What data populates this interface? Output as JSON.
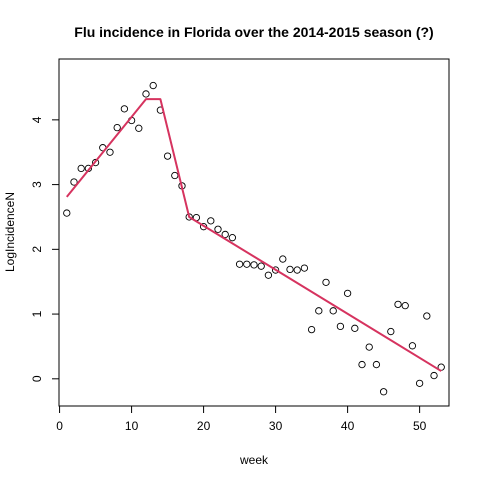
{
  "chart_data": {
    "type": "scatter",
    "title": "Flu incidence in Florida over the 2014-2015 season (?)",
    "xlabel": "week",
    "ylabel": "LogIncidenceN",
    "xlim": [
      -0.08,
      54.08
    ],
    "ylim": [
      -0.42,
      4.94
    ],
    "xticks": [
      0,
      10,
      20,
      30,
      40,
      50
    ],
    "yticks": [
      0,
      1,
      2,
      3,
      4
    ],
    "grid": false,
    "colors": {
      "points": "#000000",
      "fit_line": "#d6335f"
    },
    "points": [
      {
        "x": 1,
        "y": 2.56
      },
      {
        "x": 2,
        "y": 3.04
      },
      {
        "x": 3,
        "y": 3.25
      },
      {
        "x": 4,
        "y": 3.25
      },
      {
        "x": 5,
        "y": 3.34
      },
      {
        "x": 6,
        "y": 3.57
      },
      {
        "x": 7,
        "y": 3.5
      },
      {
        "x": 8,
        "y": 3.88
      },
      {
        "x": 9,
        "y": 4.17
      },
      {
        "x": 10,
        "y": 3.99
      },
      {
        "x": 11,
        "y": 3.87
      },
      {
        "x": 12,
        "y": 4.4
      },
      {
        "x": 13,
        "y": 4.53
      },
      {
        "x": 14,
        "y": 4.15
      },
      {
        "x": 15,
        "y": 3.44
      },
      {
        "x": 16,
        "y": 3.14
      },
      {
        "x": 17,
        "y": 2.98
      },
      {
        "x": 18,
        "y": 2.5
      },
      {
        "x": 19,
        "y": 2.49
      },
      {
        "x": 20,
        "y": 2.35
      },
      {
        "x": 21,
        "y": 2.44
      },
      {
        "x": 22,
        "y": 2.31
      },
      {
        "x": 23,
        "y": 2.23
      },
      {
        "x": 24,
        "y": 2.18
      },
      {
        "x": 25,
        "y": 1.77
      },
      {
        "x": 26,
        "y": 1.77
      },
      {
        "x": 27,
        "y": 1.76
      },
      {
        "x": 28,
        "y": 1.74
      },
      {
        "x": 29,
        "y": 1.6
      },
      {
        "x": 30,
        "y": 1.68
      },
      {
        "x": 31,
        "y": 1.85
      },
      {
        "x": 32,
        "y": 1.69
      },
      {
        "x": 33,
        "y": 1.68
      },
      {
        "x": 34,
        "y": 1.71
      },
      {
        "x": 35,
        "y": 0.76
      },
      {
        "x": 36,
        "y": 1.05
      },
      {
        "x": 37,
        "y": 1.49
      },
      {
        "x": 38,
        "y": 1.05
      },
      {
        "x": 39,
        "y": 0.81
      },
      {
        "x": 40,
        "y": 1.32
      },
      {
        "x": 41,
        "y": 0.78
      },
      {
        "x": 42,
        "y": 0.22
      },
      {
        "x": 43,
        "y": 0.49
      },
      {
        "x": 44,
        "y": 0.22
      },
      {
        "x": 45,
        "y": -0.2
      },
      {
        "x": 46,
        "y": 0.73
      },
      {
        "x": 47,
        "y": 1.15
      },
      {
        "x": 48,
        "y": 1.13
      },
      {
        "x": 49,
        "y": 0.51
      },
      {
        "x": 50,
        "y": -0.07
      },
      {
        "x": 51,
        "y": 0.97
      },
      {
        "x": 52,
        "y": 0.05
      },
      {
        "x": 53,
        "y": 0.18
      }
    ],
    "fit_line": [
      {
        "x": 1,
        "y": 2.81
      },
      {
        "x": 12,
        "y": 4.32
      },
      {
        "x": 14,
        "y": 4.32
      },
      {
        "x": 18,
        "y": 2.5
      },
      {
        "x": 53,
        "y": 0.12
      }
    ]
  }
}
